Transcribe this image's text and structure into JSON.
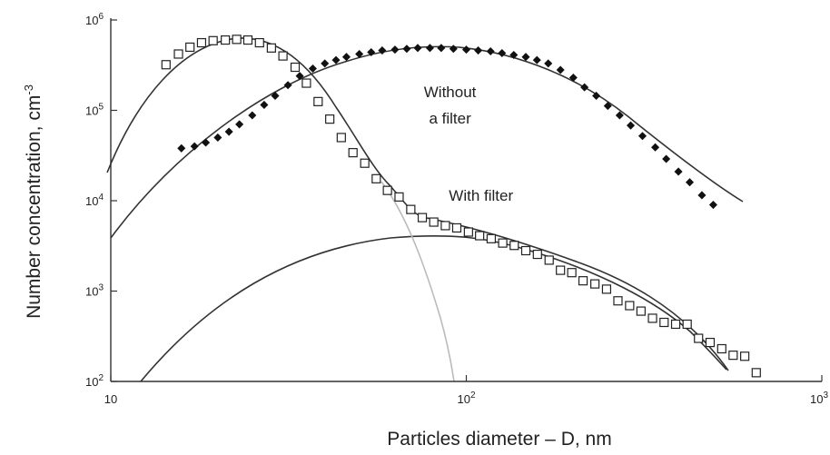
{
  "chart_data": {
    "type": "scatter",
    "xlabel": "Particles diameter – D, nm",
    "ylabel": "Number concentration, cm",
    "ylabel_sup": "-3",
    "x_scale": "log",
    "y_scale": "log",
    "xlim": [
      10,
      1000
    ],
    "ylim": [
      100,
      1000000
    ],
    "grid": false,
    "x_ticks": [
      {
        "value": 10,
        "base": "10",
        "exp": ""
      },
      {
        "value": 100,
        "base": "10",
        "exp": "2"
      },
      {
        "value": 1000,
        "base": "10",
        "exp": "3"
      }
    ],
    "y_ticks": [
      {
        "value": 100,
        "base": "10",
        "exp": "2"
      },
      {
        "value": 1000,
        "base": "10",
        "exp": "3"
      },
      {
        "value": 10000,
        "base": "10",
        "exp": "4"
      },
      {
        "value": 100000,
        "base": "10",
        "exp": "5"
      },
      {
        "value": 1000000,
        "base": "10",
        "exp": "6"
      }
    ],
    "annotations": [
      {
        "lines": [
          "Without",
          "a filter"
        ],
        "x": 90,
        "y": 140000
      },
      {
        "lines": [
          "With filter"
        ],
        "x": 110,
        "y": 10000
      }
    ],
    "series": [
      {
        "marker": "filled-diamond",
        "points": [
          [
            15.8,
            38000
          ],
          [
            17.2,
            40000
          ],
          [
            18.5,
            44000
          ],
          [
            20.0,
            50000
          ],
          [
            21.5,
            58000
          ],
          [
            23.0,
            70000
          ],
          [
            25.0,
            88000
          ],
          [
            27.0,
            115000
          ],
          [
            29.0,
            145000
          ],
          [
            31.5,
            190000
          ],
          [
            34.0,
            240000
          ],
          [
            37.0,
            290000
          ],
          [
            40.0,
            330000
          ],
          [
            43.0,
            360000
          ],
          [
            46.0,
            390000
          ],
          [
            50.0,
            420000
          ],
          [
            54.0,
            440000
          ],
          [
            58.0,
            460000
          ],
          [
            63.0,
            470000
          ],
          [
            68.0,
            480000
          ],
          [
            73.0,
            490000
          ],
          [
            79.0,
            490000
          ],
          [
            85.0,
            490000
          ],
          [
            92.0,
            480000
          ],
          [
            100.0,
            470000
          ],
          [
            108.0,
            460000
          ],
          [
            117.0,
            450000
          ],
          [
            126.0,
            430000
          ],
          [
            136.0,
            410000
          ],
          [
            147.0,
            390000
          ],
          [
            158.0,
            360000
          ],
          [
            170.0,
            330000
          ],
          [
            184.0,
            280000
          ],
          [
            200.0,
            230000
          ],
          [
            215.0,
            180000
          ],
          [
            232.0,
            145000
          ],
          [
            250.0,
            112000
          ],
          [
            270.0,
            88000
          ],
          [
            290.0,
            68000
          ],
          [
            313.0,
            52000
          ],
          [
            340.0,
            39000
          ],
          [
            365.0,
            29000
          ],
          [
            395.0,
            21000
          ],
          [
            425.0,
            16000
          ],
          [
            460.0,
            11500
          ],
          [
            495.0,
            9000
          ]
        ]
      },
      {
        "marker": "open-square",
        "points": [
          [
            14.3,
            320000
          ],
          [
            15.5,
            420000
          ],
          [
            16.7,
            500000
          ],
          [
            18.0,
            560000
          ],
          [
            19.4,
            590000
          ],
          [
            21.0,
            600000
          ],
          [
            22.6,
            610000
          ],
          [
            24.3,
            600000
          ],
          [
            26.2,
            560000
          ],
          [
            28.3,
            490000
          ],
          [
            30.5,
            400000
          ],
          [
            33.0,
            300000
          ],
          [
            35.5,
            200000
          ],
          [
            38.3,
            125000
          ],
          [
            41.3,
            80000
          ],
          [
            44.5,
            50000
          ],
          [
            48.0,
            34000
          ],
          [
            51.8,
            26000
          ],
          [
            55.8,
            17500
          ],
          [
            60.0,
            13000
          ],
          [
            64.7,
            11000
          ],
          [
            69.8,
            8000
          ],
          [
            75.2,
            6500
          ],
          [
            81.0,
            5800
          ],
          [
            87.3,
            5300
          ],
          [
            94.0,
            5000
          ],
          [
            101.4,
            4500
          ],
          [
            109.0,
            4100
          ],
          [
            117.5,
            3800
          ],
          [
            126.6,
            3400
          ],
          [
            136.4,
            3200
          ],
          [
            147.0,
            2800
          ],
          [
            158.5,
            2550
          ],
          [
            171.0,
            2200
          ],
          [
            184.0,
            1700
          ],
          [
            198.0,
            1600
          ],
          [
            213.0,
            1300
          ],
          [
            230.0,
            1200
          ],
          [
            248.0,
            1050
          ],
          [
            267.0,
            780
          ],
          [
            288.0,
            690
          ],
          [
            310.0,
            600
          ],
          [
            334.0,
            500
          ],
          [
            360.0,
            450
          ],
          [
            388.0,
            430
          ],
          [
            418.0,
            430
          ],
          [
            450.0,
            300
          ],
          [
            485.0,
            270
          ],
          [
            523.0,
            230
          ],
          [
            563.0,
            195
          ],
          [
            607.0,
            190
          ],
          [
            654.0,
            125
          ]
        ]
      }
    ]
  }
}
